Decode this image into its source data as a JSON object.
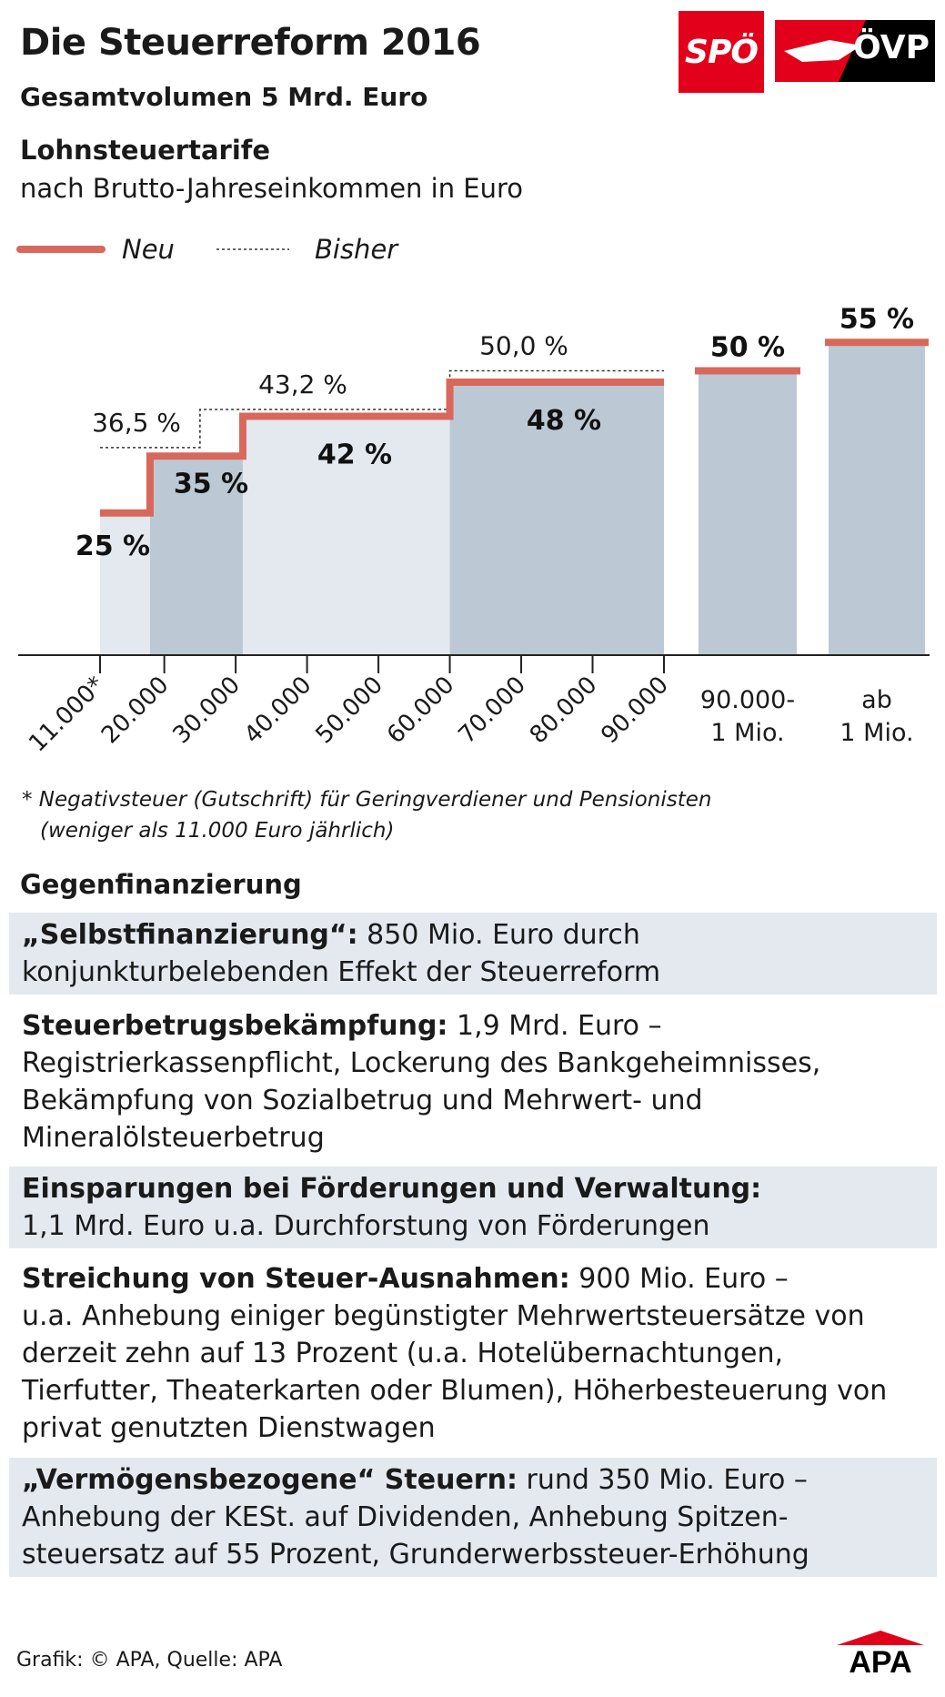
{
  "header": {
    "title": "Die Steuerreform 2016",
    "subtitle": "Gesamtvolumen 5 Mrd. Euro"
  },
  "logos": {
    "spoe": "SPÖ",
    "oevp": "ÖVP",
    "apa": "APA",
    "spoe_color": "#e3001b",
    "oevp_color": "#000000"
  },
  "chart_data": {
    "type": "bar",
    "title": "Lohnsteuertarife",
    "subtitle": "nach Brutto-Jahreseinkommen in Euro",
    "legend": {
      "new": "Neu",
      "old": "Bisher",
      "placement": "top-left"
    },
    "unit": "%",
    "tick_labels": [
      "11.000*",
      "20.000",
      "30.000",
      "40.000",
      "50.000",
      "60.000",
      "70.000",
      "80.000",
      "90.000"
    ],
    "tick_values": [
      11000,
      20000,
      30000,
      40000,
      50000,
      60000,
      70000,
      80000,
      90000
    ],
    "continuous_brackets": [
      {
        "from": 11000,
        "to": 18000,
        "new": 25,
        "new_label": "25 %"
      },
      {
        "from": 18000,
        "to": 31000,
        "new": 35,
        "new_label": "35 %"
      },
      {
        "from": 31000,
        "to": 60000,
        "new": 42,
        "new_label": "42 %"
      },
      {
        "from": 60000,
        "to": 90000,
        "new": 48,
        "new_label": "48 %"
      }
    ],
    "old_tariff": [
      {
        "from": 11000,
        "to": 25000,
        "value": 36.5,
        "label": "36,5 %"
      },
      {
        "from": 25000,
        "to": 60000,
        "value": 43.2,
        "label": "43,2 %"
      },
      {
        "from": 60000,
        "to": 90000,
        "value": 50.0,
        "label": "50,0 %"
      }
    ],
    "separate_brackets": [
      {
        "label_line1": "90.000-",
        "label_line2": "1 Mio.",
        "new": 50,
        "new_label": "50 %"
      },
      {
        "label_line1": "ab",
        "label_line2": "1 Mio.",
        "new": 55,
        "new_label": "55 %"
      }
    ],
    "ylim": [
      0,
      60
    ],
    "colors": {
      "new_line": "#d8685c",
      "bar_light": "#e4e8ef",
      "bar_dark": "#bcc9d5",
      "old_line": "#333333"
    }
  },
  "footnote": {
    "line1": "* Negativsteuer (Gutschrift) für Geringverdiener und Pensionisten",
    "line2": "(weniger als 11.000 Euro jährlich)"
  },
  "gegenfinanzierung": {
    "heading": "Gegenfinanzierung",
    "items": [
      {
        "bold": "„Selbstfinanzierung“:",
        "lines": [
          "850 Mio. Euro durch",
          "konjunkturbelebenden Effekt der Steuerreform"
        ]
      },
      {
        "bold": "Steuerbetrugsbekämpfung:",
        "lines": [
          "1,9 Mrd. Euro –",
          "Registrierkassenpflicht, Lockerung des Bankgeheimnisses,",
          "Bekämpfung von Sozialbetrug und Mehrwert- und",
          "Mineralölsteuerbetrug"
        ]
      },
      {
        "bold": "Einsparungen bei Förderungen und Verwaltung:",
        "lines": [
          "",
          "1,1 Mrd. Euro u.a. Durchforstung von Förderungen"
        ]
      },
      {
        "bold": "Streichung von Steuer-Ausnahmen:",
        "lines": [
          "900 Mio. Euro –",
          "u.a. Anhebung einiger begünstigter Mehrwertsteuersätze von",
          "derzeit zehn auf 13 Prozent (u.a. Hotelübernachtungen,",
          "Tierfutter, Theaterkarten oder Blumen), Höherbesteuerung von",
          "privat genutzten Dienstwagen"
        ]
      },
      {
        "bold": "„Vermögensbezogene“ Steuern:",
        "lines": [
          "rund 350 Mio. Euro –",
          "Anhebung der KESt. auf Dividenden, Anhebung Spitzen-",
          "steuersatz auf 55 Prozent, Grunderwerbssteuer-Erhöhung"
        ]
      }
    ]
  },
  "source": "Grafik: © APA, Quelle: APA"
}
